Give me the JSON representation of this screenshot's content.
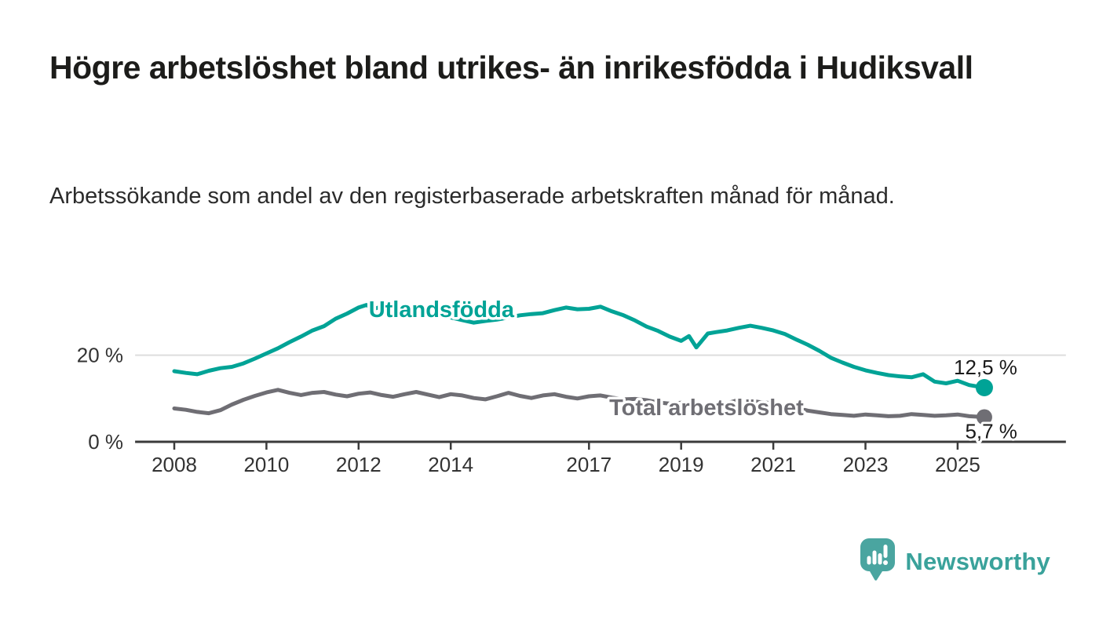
{
  "page": {
    "title": "Högre arbetslöshet bland utrikes- än inrikesfödda i Hudiksvall",
    "subtitle": "Arbetssökande som andel av den registerbaserade arbetskraften månad för månad."
  },
  "colors": {
    "accent_teal": "#00a396",
    "series_gray": "#6f6e74",
    "axis": "#3b3b3b",
    "axis_text": "#333333",
    "gridline": "#dedede",
    "value_label_text": "#1a1a1a",
    "logo_icon": "#4aa5a0",
    "logo_text": "#3aa29b"
  },
  "branding": {
    "logo_text": "Newsworthy",
    "logo_icon_name": "bar-chart-speech-bubble-icon"
  },
  "chart_data": {
    "type": "line",
    "title": "Högre arbetslöshet bland utrikes- än inrikesfödda i Hudiksvall",
    "subtitle": "Arbetssökande som andel av den registerbaserade arbetskraften månad för månad.",
    "xlabel": "",
    "ylabel": "",
    "x_axis": {
      "range": [
        2007.15,
        2027.35
      ],
      "ticks": [
        2008,
        2010,
        2012,
        2014,
        2017,
        2019,
        2021,
        2023,
        2025
      ],
      "tick_labels": [
        "2008",
        "2010",
        "2012",
        "2014",
        "2017",
        "2019",
        "2021",
        "2023",
        "2025"
      ]
    },
    "y_axis": {
      "range": [
        0,
        38
      ],
      "ticks": [
        0,
        20
      ],
      "tick_labels": [
        "0 %",
        "20 %"
      ],
      "gridlines": [
        20
      ],
      "unit": "%"
    },
    "legend_position": "inline-labels",
    "grid": "horizontal-only",
    "series": [
      {
        "name": "Utlandsfödda",
        "color": "#00a396",
        "end_label": "12,5 %",
        "end_value": 12.5,
        "label_anchor": {
          "x": 2012.22,
          "y": 28.8
        },
        "points": [
          [
            2008.0,
            16.3
          ],
          [
            2008.25,
            15.9
          ],
          [
            2008.5,
            15.6
          ],
          [
            2008.75,
            16.4
          ],
          [
            2009.0,
            17.0
          ],
          [
            2009.25,
            17.3
          ],
          [
            2009.5,
            18.1
          ],
          [
            2009.75,
            19.2
          ],
          [
            2010.0,
            20.4
          ],
          [
            2010.25,
            21.6
          ],
          [
            2010.5,
            23.0
          ],
          [
            2010.75,
            24.3
          ],
          [
            2011.0,
            25.7
          ],
          [
            2011.25,
            26.7
          ],
          [
            2011.5,
            28.4
          ],
          [
            2011.75,
            29.6
          ],
          [
            2012.0,
            31.0
          ],
          [
            2012.17,
            31.6
          ],
          [
            2012.33,
            30.7
          ],
          [
            2012.5,
            31.2
          ],
          [
            2012.75,
            30.3
          ],
          [
            2013.0,
            30.0
          ],
          [
            2013.25,
            30.4
          ],
          [
            2013.5,
            29.7
          ],
          [
            2013.75,
            29.2
          ],
          [
            2014.0,
            28.7
          ],
          [
            2014.25,
            28.1
          ],
          [
            2014.5,
            27.5
          ],
          [
            2014.75,
            27.9
          ],
          [
            2015.0,
            28.2
          ],
          [
            2015.25,
            28.7
          ],
          [
            2015.5,
            29.2
          ],
          [
            2015.75,
            29.5
          ],
          [
            2016.0,
            29.7
          ],
          [
            2016.25,
            30.4
          ],
          [
            2016.5,
            31.0
          ],
          [
            2016.75,
            30.6
          ],
          [
            2017.0,
            30.7
          ],
          [
            2017.25,
            31.2
          ],
          [
            2017.5,
            30.1
          ],
          [
            2017.75,
            29.2
          ],
          [
            2018.0,
            28.0
          ],
          [
            2018.25,
            26.6
          ],
          [
            2018.5,
            25.6
          ],
          [
            2018.75,
            24.3
          ],
          [
            2019.0,
            23.3
          ],
          [
            2019.17,
            24.4
          ],
          [
            2019.33,
            21.8
          ],
          [
            2019.58,
            25.0
          ],
          [
            2019.75,
            25.3
          ],
          [
            2020.0,
            25.7
          ],
          [
            2020.25,
            26.3
          ],
          [
            2020.5,
            26.8
          ],
          [
            2020.75,
            26.3
          ],
          [
            2021.0,
            25.7
          ],
          [
            2021.25,
            24.9
          ],
          [
            2021.5,
            23.6
          ],
          [
            2021.75,
            22.4
          ],
          [
            2022.0,
            21.0
          ],
          [
            2022.25,
            19.4
          ],
          [
            2022.5,
            18.3
          ],
          [
            2022.75,
            17.3
          ],
          [
            2023.0,
            16.5
          ],
          [
            2023.25,
            15.9
          ],
          [
            2023.5,
            15.4
          ],
          [
            2023.75,
            15.1
          ],
          [
            2024.0,
            14.9
          ],
          [
            2024.25,
            15.6
          ],
          [
            2024.5,
            13.9
          ],
          [
            2024.75,
            13.5
          ],
          [
            2025.0,
            14.1
          ],
          [
            2025.25,
            13.1
          ],
          [
            2025.58,
            12.5
          ]
        ]
      },
      {
        "name": "Total arbetslöshet",
        "color": "#6f6e74",
        "end_label": "5,7 %",
        "end_value": 5.7,
        "label_anchor": {
          "x": 2017.44,
          "y": 6.2
        },
        "points": [
          [
            2008.0,
            7.7
          ],
          [
            2008.25,
            7.4
          ],
          [
            2008.5,
            6.9
          ],
          [
            2008.75,
            6.6
          ],
          [
            2009.0,
            7.3
          ],
          [
            2009.25,
            8.6
          ],
          [
            2009.5,
            9.7
          ],
          [
            2009.75,
            10.6
          ],
          [
            2010.0,
            11.4
          ],
          [
            2010.25,
            12.0
          ],
          [
            2010.5,
            11.3
          ],
          [
            2010.75,
            10.8
          ],
          [
            2011.0,
            11.3
          ],
          [
            2011.25,
            11.5
          ],
          [
            2011.5,
            10.9
          ],
          [
            2011.75,
            10.5
          ],
          [
            2012.0,
            11.1
          ],
          [
            2012.25,
            11.4
          ],
          [
            2012.5,
            10.8
          ],
          [
            2012.75,
            10.4
          ],
          [
            2013.0,
            11.0
          ],
          [
            2013.25,
            11.5
          ],
          [
            2013.5,
            10.9
          ],
          [
            2013.75,
            10.3
          ],
          [
            2014.0,
            11.0
          ],
          [
            2014.25,
            10.7
          ],
          [
            2014.5,
            10.1
          ],
          [
            2014.75,
            9.8
          ],
          [
            2015.0,
            10.5
          ],
          [
            2015.25,
            11.3
          ],
          [
            2015.5,
            10.6
          ],
          [
            2015.75,
            10.1
          ],
          [
            2016.0,
            10.7
          ],
          [
            2016.25,
            11.0
          ],
          [
            2016.5,
            10.4
          ],
          [
            2016.75,
            10.0
          ],
          [
            2017.0,
            10.5
          ],
          [
            2017.25,
            10.7
          ],
          [
            2017.5,
            10.2
          ],
          [
            2017.75,
            9.8
          ],
          [
            2018.0,
            9.9
          ],
          [
            2018.25,
            9.6
          ],
          [
            2018.5,
            9.1
          ],
          [
            2018.75,
            8.8
          ],
          [
            2019.0,
            9.0
          ],
          [
            2019.25,
            8.8
          ],
          [
            2019.5,
            8.5
          ],
          [
            2019.75,
            8.7
          ],
          [
            2020.0,
            8.9
          ],
          [
            2020.25,
            9.7
          ],
          [
            2020.5,
            9.5
          ],
          [
            2020.75,
            9.1
          ],
          [
            2021.0,
            8.9
          ],
          [
            2021.25,
            8.4
          ],
          [
            2021.5,
            7.8
          ],
          [
            2021.75,
            7.2
          ],
          [
            2022.0,
            6.8
          ],
          [
            2022.25,
            6.4
          ],
          [
            2022.5,
            6.2
          ],
          [
            2022.75,
            6.0
          ],
          [
            2023.0,
            6.3
          ],
          [
            2023.25,
            6.1
          ],
          [
            2023.5,
            5.9
          ],
          [
            2023.75,
            6.0
          ],
          [
            2024.0,
            6.4
          ],
          [
            2024.25,
            6.2
          ],
          [
            2024.5,
            6.0
          ],
          [
            2024.75,
            6.1
          ],
          [
            2025.0,
            6.3
          ],
          [
            2025.25,
            5.9
          ],
          [
            2025.58,
            5.7
          ]
        ]
      }
    ]
  }
}
